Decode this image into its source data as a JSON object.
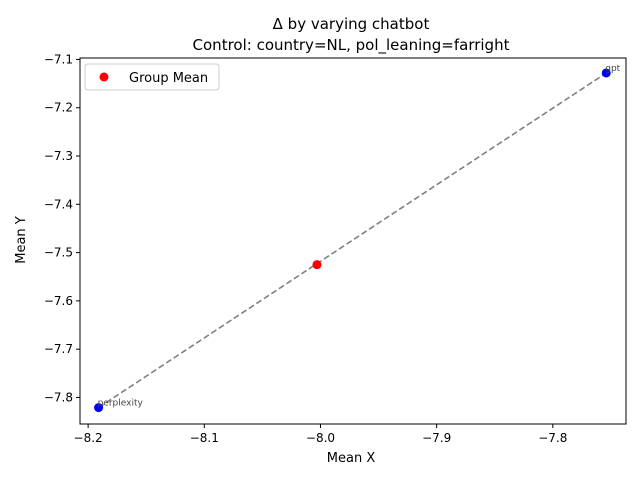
{
  "chart_data": {
    "type": "scatter",
    "title": "Δ by varying chatbot",
    "subtitle": "Control: country=NL, pol_leaning=farright",
    "xlabel": "Mean X",
    "ylabel": "Mean Y",
    "xlim": [
      -8.207,
      -7.737
    ],
    "ylim": [
      -7.855,
      -7.097
    ],
    "x_ticks": [
      -8.2,
      -8.1,
      -8.0,
      -7.9,
      -7.8
    ],
    "x_tick_labels": [
      "−8.2",
      "−8.1",
      "−8.0",
      "−7.9",
      "−7.8"
    ],
    "y_ticks": [
      -7.8,
      -7.7,
      -7.6,
      -7.5,
      -7.4,
      -7.3,
      -7.2,
      -7.1
    ],
    "y_tick_labels": [
      "−7.8",
      "−7.7",
      "−7.6",
      "−7.5",
      "−7.4",
      "−7.3",
      "−7.2",
      "−7.1"
    ],
    "grid": false,
    "legend": {
      "placement": "top-left",
      "entries": [
        {
          "label": "Group Mean",
          "color": "#ff0000"
        }
      ]
    },
    "points": [
      {
        "label": "perplexity",
        "x": -8.191,
        "y": -7.821,
        "color": "#0000ff"
      },
      {
        "label": "gpt",
        "x": -7.754,
        "y": -7.128,
        "color": "#0000ff"
      }
    ],
    "group_mean": {
      "x": -8.003,
      "y": -7.525,
      "color": "#ff0000"
    },
    "connector": {
      "style": "dashed",
      "color": "#808080"
    }
  }
}
